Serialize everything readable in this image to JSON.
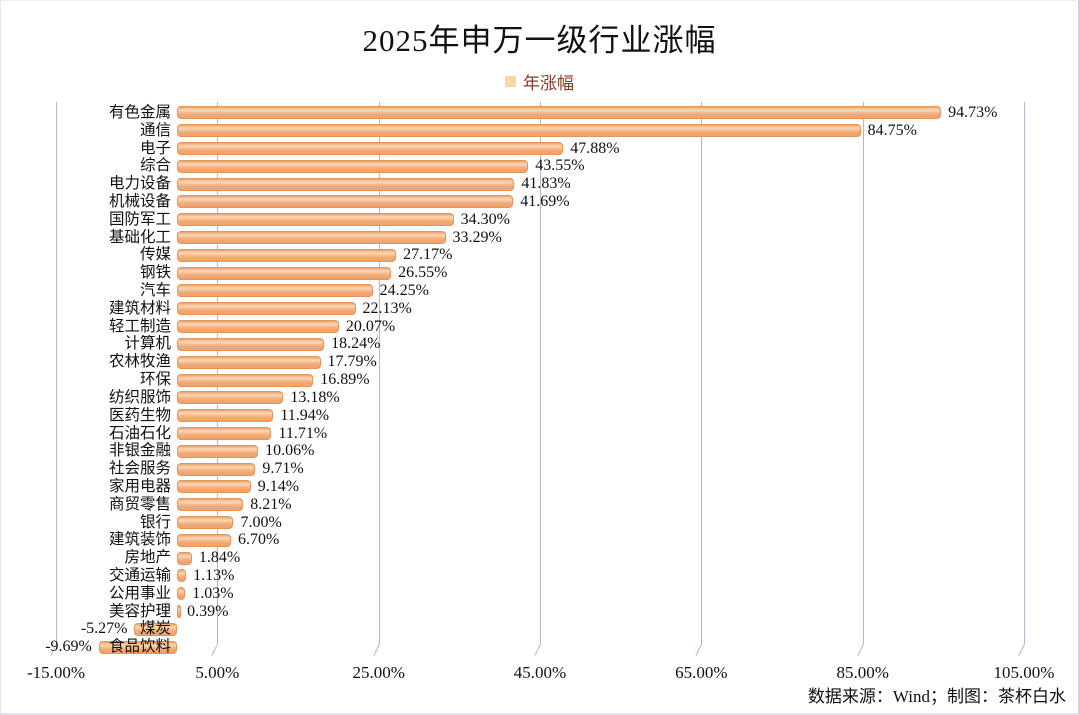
{
  "title": "2025年申万一级行业涨幅",
  "legend": {
    "label": "年涨幅",
    "marker_color": "#f9d7a2",
    "text_color": "#8c3a28"
  },
  "footer": {
    "source_note": "数据来源：Wind；制图：茶杯白水"
  },
  "colors": {
    "bar_fill": "#f4b183",
    "bar_border": "#e5945a",
    "gridline": "#b6b6cf",
    "text": "#111111"
  },
  "chart_data": {
    "type": "bar",
    "orientation": "horizontal",
    "title": "2025年申万一级行业涨幅",
    "series_name": "年涨幅",
    "categories": [
      "有色金属",
      "通信",
      "电子",
      "综合",
      "电力设备",
      "机械设备",
      "国防军工",
      "基础化工",
      "传媒",
      "钢铁",
      "汽车",
      "建筑材料",
      "轻工制造",
      "计算机",
      "农林牧渔",
      "环保",
      "纺织服饰",
      "医药生物",
      "石油石化",
      "非银金融",
      "社会服务",
      "家用电器",
      "商贸零售",
      "银行",
      "建筑装饰",
      "房地产",
      "交通运输",
      "公用事业",
      "美容护理",
      "煤炭",
      "食品饮料"
    ],
    "values": [
      94.73,
      84.75,
      47.88,
      43.55,
      41.83,
      41.69,
      34.3,
      33.29,
      27.17,
      26.55,
      24.25,
      22.13,
      20.07,
      18.24,
      17.79,
      16.89,
      13.18,
      11.94,
      11.71,
      10.06,
      9.71,
      9.14,
      8.21,
      7.0,
      6.7,
      1.84,
      1.13,
      1.03,
      0.39,
      -5.27,
      -9.69
    ],
    "value_labels": [
      "94.73%",
      "84.75%",
      "47.88%",
      "43.55%",
      "41.83%",
      "41.69%",
      "34.30%",
      "33.29%",
      "27.17%",
      "26.55%",
      "24.25%",
      "22.13%",
      "20.07%",
      "18.24%",
      "17.79%",
      "16.89%",
      "13.18%",
      "11.94%",
      "11.71%",
      "10.06%",
      "9.71%",
      "9.14%",
      "8.21%",
      "7.00%",
      "6.70%",
      "1.84%",
      "1.13%",
      "1.03%",
      "0.39%",
      "-5.27%",
      "-9.69%"
    ],
    "xlabel": "",
    "ylabel": "",
    "xlim": [
      -15,
      105
    ],
    "x_ticks": [
      -15,
      5,
      25,
      45,
      65,
      85,
      105
    ],
    "x_tick_labels": [
      "-15.00%",
      "5.00%",
      "25.00%",
      "45.00%",
      "65.00%",
      "85.00%",
      "105.00%"
    ],
    "grid": "vertical-only",
    "legend_position": "top-center"
  }
}
